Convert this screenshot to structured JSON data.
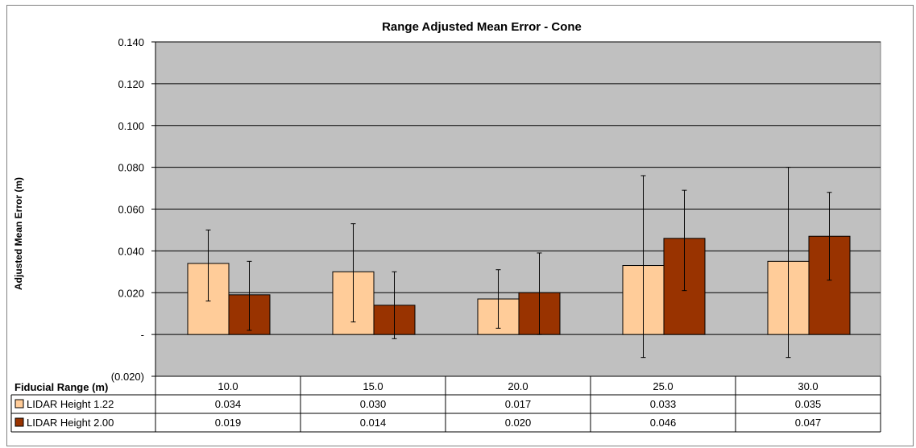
{
  "chart_data": {
    "type": "bar",
    "title": "Range Adjusted Mean Error - Cone",
    "xlabel": "Fiducial Range (m)",
    "ylabel": "Adjusted Mean Error (m)",
    "categories": [
      "10.0",
      "15.0",
      "20.0",
      "25.0",
      "30.0"
    ],
    "ylim": [
      -0.02,
      0.14
    ],
    "yticks": [
      -0.02,
      0.0,
      0.02,
      0.04,
      0.06,
      0.08,
      0.1,
      0.12,
      0.14
    ],
    "ytick_labels": [
      "(0.020)",
      "-",
      "0.020",
      "0.040",
      "0.060",
      "0.080",
      "0.100",
      "0.120",
      "0.140"
    ],
    "grid": true,
    "legend": "data-table",
    "series": [
      {
        "name": "LIDAR Height 1.22",
        "color": "#FFCC99",
        "values": [
          0.034,
          0.03,
          0.017,
          0.033,
          0.035
        ],
        "value_labels": [
          "0.034",
          "0.030",
          "0.017",
          "0.033",
          "0.035"
        ],
        "error_low": [
          0.016,
          0.006,
          0.003,
          -0.011,
          -0.011
        ],
        "error_high": [
          0.05,
          0.053,
          0.031,
          0.076,
          0.08
        ]
      },
      {
        "name": "LIDAR Height 2.00",
        "color": "#993300",
        "values": [
          0.019,
          0.014,
          0.02,
          0.046,
          0.047
        ],
        "value_labels": [
          "0.019",
          "0.014",
          "0.020",
          "0.046",
          "0.047"
        ],
        "error_low": [
          0.002,
          -0.002,
          0.0,
          0.021,
          0.026
        ],
        "error_high": [
          0.035,
          0.03,
          0.039,
          0.069,
          0.068
        ]
      }
    ],
    "plot_background": "#C0C0C0"
  }
}
